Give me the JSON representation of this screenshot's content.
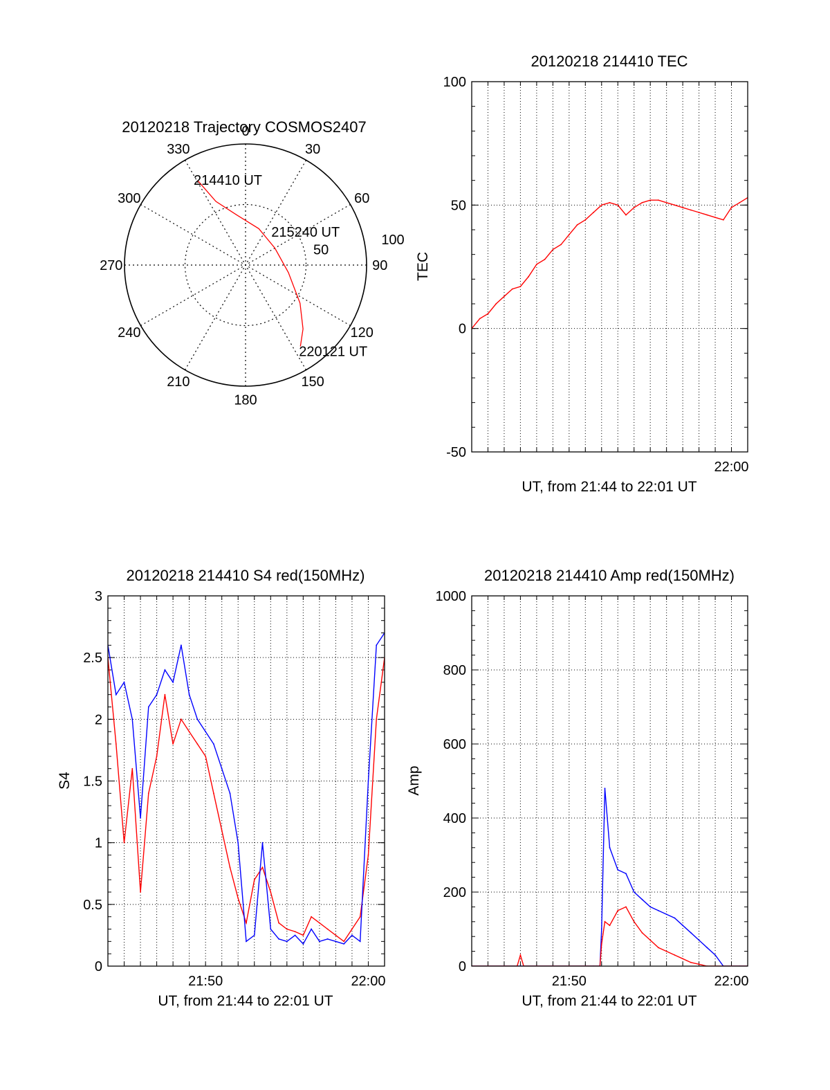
{
  "polar": {
    "title": "20120218 Trajectory COSMOS2407",
    "angle_labels": [
      "0",
      "30",
      "60",
      "90",
      "120",
      "150",
      "180",
      "210",
      "240",
      "270",
      "300",
      "330"
    ],
    "radial_labels": [
      "50",
      "100"
    ],
    "track": {
      "color": "#ff0000",
      "points": [
        {
          "az": 330.5,
          "zen": 80
        },
        {
          "az": 335,
          "zen": 58
        },
        {
          "az": 350,
          "zen": 42
        },
        {
          "az": 20,
          "zen": 32
        },
        {
          "az": 60,
          "zen": 28
        },
        {
          "az": 100,
          "zen": 36
        },
        {
          "az": 125,
          "zen": 55
        },
        {
          "az": 138,
          "zen": 71
        },
        {
          "az": 146,
          "zen": 81
        }
      ],
      "labels": [
        {
          "text": "214410 UT",
          "az": 330.5,
          "zen": 80
        },
        {
          "text": "215240 UT",
          "az": 62,
          "zen": 28
        },
        {
          "text": "220121 UT",
          "az": 146,
          "zen": 81
        }
      ]
    }
  },
  "tec_panel": {
    "title": "20120218 214410 TEC",
    "xlabel": "UT, from 21:44 to 22:01 UT",
    "ylabel": "TEC",
    "yticks": [
      "100",
      "50",
      "0",
      "-50"
    ],
    "xtick": "22:00"
  },
  "s4_panel": {
    "title": "20120218 214410 S4 red(150MHz)",
    "xlabel": "UT, from 21:44 to 22:01 UT",
    "ylabel": "S4",
    "yticks": [
      "3",
      "2.5",
      "2",
      "1.5",
      "1",
      "0.5",
      "0"
    ],
    "xticks": [
      "21:50",
      "22:00"
    ]
  },
  "amp_panel": {
    "title": "20120218 214410 Amp red(150MHz)",
    "xlabel": "UT, from 21:44 to 22:01 UT",
    "ylabel": "Amp",
    "yticks": [
      "1000",
      "800",
      "600",
      "400",
      "200",
      "0"
    ],
    "xticks": [
      "21:50",
      "22:00"
    ]
  },
  "chart_data": [
    {
      "type": "scatter",
      "title": "20120218 Trajectory COSMOS2407",
      "polar": true,
      "angle_unit": "deg (azimuth, clockwise from north)",
      "r_range": [
        0,
        100
      ],
      "series": [
        {
          "x": [
            330.5,
            335,
            350,
            20,
            60,
            100,
            125,
            138,
            146
          ],
          "y": [
            80,
            58,
            42,
            32,
            28,
            36,
            55,
            71,
            81
          ],
          "color": "#ff0000"
        }
      ]
    },
    {
      "type": "line",
      "title": "20120218 214410 TEC",
      "xlabel": "UT, from 21:44 to 22:01 UT",
      "ylabel": "TEC",
      "xlim": [
        44,
        61
      ],
      "ylim": [
        -50,
        100
      ],
      "grid": true,
      "series": [
        {
          "color": "#ff0000",
          "x": [
            44.0,
            44.5,
            45.0,
            45.5,
            46.0,
            46.5,
            47.0,
            47.5,
            48.0,
            48.5,
            49.0,
            49.5,
            50.0,
            50.5,
            51.0,
            51.5,
            52.0,
            52.5,
            53.0,
            53.5,
            54.0,
            54.5,
            55.0,
            55.5,
            56.0,
            56.5,
            57.0,
            57.5,
            58.0,
            58.5,
            59.0,
            59.5,
            60.0,
            60.5,
            61.0
          ],
          "y": [
            0,
            4,
            6,
            10,
            13,
            16,
            17,
            21,
            26,
            28,
            32,
            34,
            38,
            42,
            44,
            47,
            50,
            51,
            50,
            46,
            49,
            51,
            52,
            52,
            51,
            50,
            49,
            48,
            47,
            46,
            45,
            44,
            49,
            51,
            53
          ]
        }
      ]
    },
    {
      "type": "line",
      "title": "20120218 214410 S4 red(150MHz)",
      "xlabel": "UT, from 21:44 to 22:01 UT",
      "ylabel": "S4",
      "xlim": [
        44,
        61
      ],
      "ylim": [
        0,
        3
      ],
      "grid": true,
      "series": [
        {
          "color": "#ff0000",
          "x": [
            44.0,
            44.5,
            45.0,
            45.5,
            46.0,
            46.5,
            47.0,
            47.5,
            48.0,
            48.5,
            49.0,
            49.5,
            50.0,
            50.5,
            51.0,
            51.5,
            52.0,
            52.5,
            53.0,
            53.5,
            54.0,
            54.5,
            55.0,
            55.5,
            56.0,
            56.5,
            57.0,
            57.5,
            58.0,
            58.5,
            59.0,
            59.5,
            60.0,
            60.5,
            61.0
          ],
          "y": [
            2.5,
            1.8,
            1.0,
            1.6,
            0.6,
            1.4,
            1.7,
            2.2,
            1.8,
            2.0,
            1.9,
            1.8,
            1.7,
            1.4,
            1.1,
            0.8,
            0.55,
            0.35,
            0.7,
            0.8,
            0.6,
            0.35,
            0.3,
            0.28,
            0.25,
            0.4,
            0.35,
            0.3,
            0.25,
            0.2,
            0.3,
            0.4,
            0.9,
            2.0,
            2.5
          ]
        },
        {
          "color": "#0000ff",
          "x": [
            44.0,
            44.5,
            45.0,
            45.5,
            46.0,
            46.5,
            47.0,
            47.5,
            48.0,
            48.5,
            49.0,
            49.5,
            50.0,
            50.5,
            51.0,
            51.5,
            52.0,
            52.5,
            53.0,
            53.5,
            54.0,
            54.5,
            55.0,
            55.5,
            56.0,
            56.5,
            57.0,
            57.5,
            58.0,
            58.5,
            59.0,
            59.5,
            60.0,
            60.5,
            61.0
          ],
          "y": [
            2.6,
            2.2,
            2.3,
            2.0,
            1.2,
            2.1,
            2.2,
            2.4,
            2.3,
            2.6,
            2.2,
            2.0,
            1.9,
            1.8,
            1.6,
            1.4,
            1.0,
            0.2,
            0.25,
            1.0,
            0.3,
            0.22,
            0.2,
            0.25,
            0.18,
            0.3,
            0.2,
            0.22,
            0.2,
            0.18,
            0.25,
            0.2,
            1.5,
            2.6,
            2.7
          ]
        }
      ]
    },
    {
      "type": "line",
      "title": "20120218 214410 Amp red(150MHz)",
      "xlabel": "UT, from 21:44 to 22:01 UT",
      "ylabel": "Amp",
      "xlim": [
        44,
        61
      ],
      "ylim": [
        0,
        1000
      ],
      "grid": true,
      "series": [
        {
          "color": "#0000ff",
          "x": [
            44.0,
            45.0,
            46.0,
            47.0,
            48.0,
            49.0,
            50.0,
            51.0,
            51.5,
            51.9,
            52.0,
            52.2,
            52.5,
            53.0,
            53.5,
            54.0,
            54.5,
            55.0,
            55.5,
            56.0,
            56.5,
            57.0,
            57.5,
            58.0,
            58.5,
            59.0,
            59.5,
            60.0,
            60.5,
            61.0
          ],
          "y": [
            0,
            0,
            0,
            0,
            0,
            0,
            0,
            0,
            0,
            0,
            100,
            480,
            320,
            260,
            250,
            200,
            180,
            160,
            150,
            140,
            130,
            110,
            90,
            70,
            50,
            30,
            0,
            0,
            0,
            0
          ]
        },
        {
          "color": "#ff0000",
          "x": [
            44.0,
            45.0,
            46.0,
            46.8,
            47.0,
            47.2,
            48.0,
            49.0,
            50.0,
            51.0,
            51.9,
            52.0,
            52.2,
            52.5,
            53.0,
            53.5,
            54.0,
            54.5,
            55.0,
            55.5,
            56.0,
            56.5,
            57.0,
            57.5,
            58.0,
            58.5,
            59.0,
            60.0,
            61.0
          ],
          "y": [
            0,
            0,
            0,
            0,
            30,
            0,
            0,
            0,
            0,
            0,
            0,
            60,
            120,
            110,
            150,
            160,
            120,
            90,
            70,
            50,
            40,
            30,
            20,
            10,
            5,
            0,
            0,
            0,
            0
          ]
        }
      ]
    }
  ]
}
